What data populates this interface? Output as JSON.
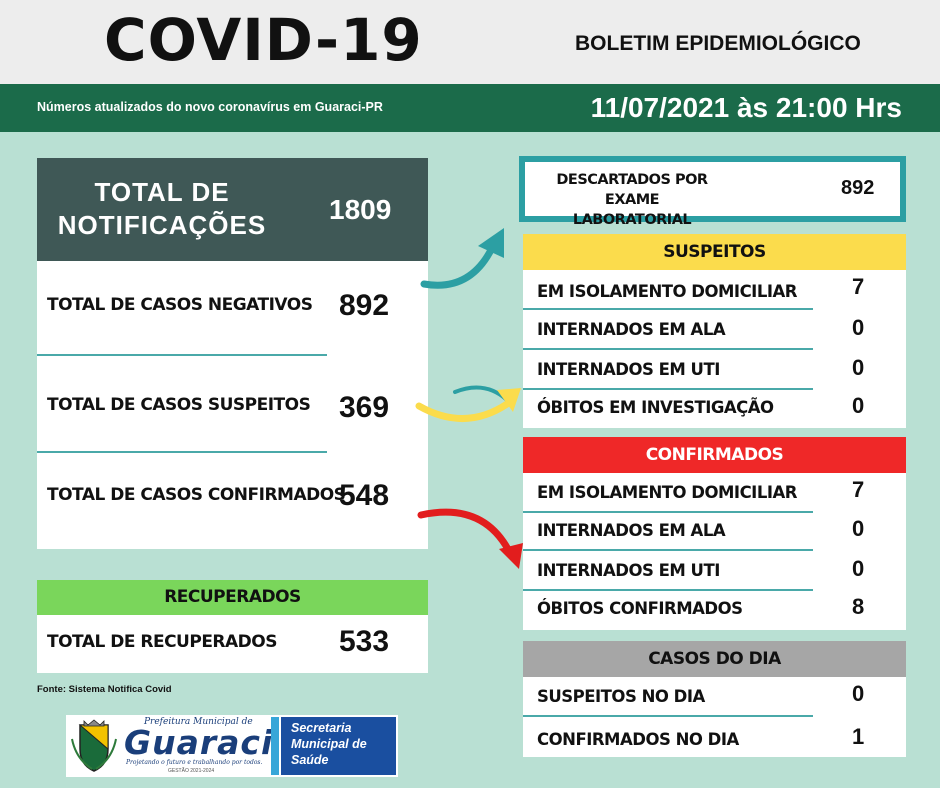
{
  "header": {
    "title": "COVID-19",
    "bulletin": "BOLETIM EPIDEMIOLÓGICO",
    "subtitle": "Números atualizados do novo coronavírus em Guaraci-PR",
    "datetime": "11/07/2021 às 21:00 Hrs"
  },
  "notificacoes": {
    "label_line1": "TOTAL DE",
    "label_line2": "NOTIFICAÇÕES",
    "value": "1809"
  },
  "totals": [
    {
      "label": "TOTAL DE CASOS NEGATIVOS",
      "value": "892"
    },
    {
      "label": "TOTAL DE CASOS SUSPEITOS",
      "value": "369"
    },
    {
      "label": "TOTAL DE CASOS CONFIRMADOS",
      "value": "548"
    }
  ],
  "recuperados": {
    "header": "RECUPERADOS",
    "label": "TOTAL DE RECUPERADOS",
    "value": "533"
  },
  "source": "Fonte: Sistema Notifica Covid",
  "logo": {
    "prefeitura": "Prefeitura Municipal de",
    "name": "Guaraci",
    "tagline": "Projetando o futuro e trabalhando por todos.",
    "gestao": "GESTÃO 2021-2024",
    "secretaria": [
      "Secretaria",
      "Municipal de",
      "Saúde"
    ]
  },
  "descartados": {
    "label_line1": "DESCARTADOS POR EXAME",
    "label_line2": "LABORATORIAL",
    "value": "892"
  },
  "suspeitos": {
    "header": "SUSPEITOS",
    "rows": [
      {
        "label": "EM ISOLAMENTO DOMICILIAR",
        "value": "7"
      },
      {
        "label": "INTERNADOS EM ALA",
        "value": "0"
      },
      {
        "label": "INTERNADOS EM UTI",
        "value": "0"
      },
      {
        "label": "ÓBITOS EM INVESTIGAÇÃO",
        "value": "0"
      }
    ]
  },
  "confirmados": {
    "header": "CONFIRMADOS",
    "rows": [
      {
        "label": "EM ISOLAMENTO DOMICILIAR",
        "value": "7"
      },
      {
        "label": "INTERNADOS EM ALA",
        "value": "0"
      },
      {
        "label": "INTERNADOS EM UTI",
        "value": "0"
      },
      {
        "label": "ÓBITOS CONFIRMADOS",
        "value": "8"
      }
    ]
  },
  "casos_dia": {
    "header": "CASOS DO DIA",
    "rows": [
      {
        "label": "SUSPEITOS NO DIA",
        "value": "0"
      },
      {
        "label": "CONFIRMADOS NO DIA",
        "value": "1"
      }
    ]
  },
  "colors": {
    "background": "#b9e0d3",
    "band": "#1b6b4a",
    "notif_head": "#3f5856",
    "teal": "#2c9fa3",
    "suspeitos": "#fbdc4c",
    "confirmados": "#ef2828",
    "recuperados": "#7ad65b",
    "casos_dia": "#a6a6a6"
  }
}
